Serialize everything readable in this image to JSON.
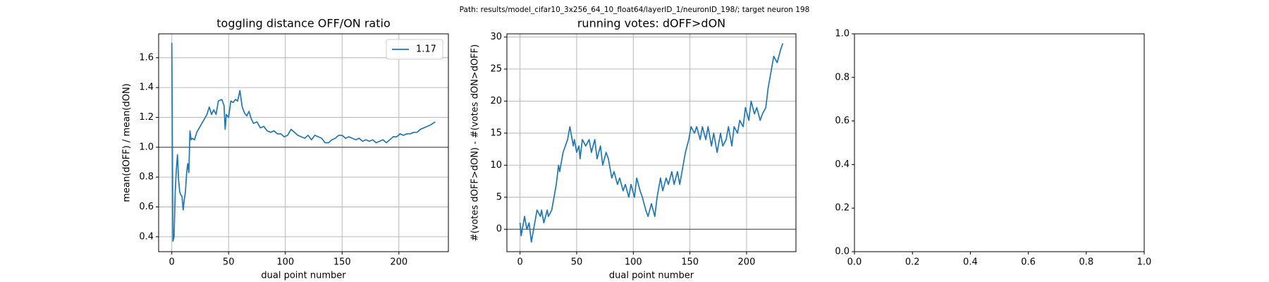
{
  "title": "Path: results/model_cifar10_3x256_64_10_float64/layerID_1/neuronID_198/; target neuron 198",
  "chart_data": [
    {
      "type": "line",
      "title": "toggling distance OFF/ON ratio",
      "x_label": "dual point number",
      "y_label": "mean(dOFF) / mean(dON)",
      "x": [
        0,
        1,
        2,
        3,
        4,
        5,
        6,
        7,
        8,
        9,
        10,
        11,
        12,
        13,
        14,
        15,
        16,
        17,
        18,
        20,
        22,
        25,
        28,
        31,
        33,
        35,
        37,
        39,
        41,
        44,
        46,
        47,
        48,
        50,
        52,
        54,
        56,
        58,
        60,
        62,
        64,
        66,
        68,
        70,
        72,
        75,
        78,
        81,
        84,
        87,
        90,
        93,
        96,
        99,
        102,
        105,
        108,
        111,
        114,
        117,
        120,
        123,
        126,
        129,
        132,
        135,
        138,
        141,
        144,
        147,
        150,
        153,
        156,
        159,
        162,
        165,
        168,
        171,
        174,
        177,
        180,
        183,
        186,
        189,
        192,
        195,
        198,
        201,
        204,
        207,
        210,
        213,
        216,
        219,
        222,
        225,
        228,
        232
      ],
      "series": [
        {
          "name": "1.17",
          "color": "#1f77b4",
          "values": [
            1.7,
            0.37,
            0.4,
            0.7,
            0.85,
            0.95,
            0.78,
            0.7,
            0.68,
            0.67,
            0.58,
            0.65,
            0.7,
            0.82,
            0.89,
            0.83,
            1.11,
            1.05,
            1.06,
            1.05,
            1.1,
            1.14,
            1.18,
            1.22,
            1.27,
            1.22,
            1.25,
            1.22,
            1.31,
            1.32,
            1.28,
            1.12,
            1.22,
            1.2,
            1.31,
            1.3,
            1.32,
            1.31,
            1.38,
            1.27,
            1.23,
            1.21,
            1.24,
            1.19,
            1.16,
            1.17,
            1.13,
            1.14,
            1.11,
            1.1,
            1.11,
            1.09,
            1.09,
            1.07,
            1.08,
            1.12,
            1.1,
            1.08,
            1.07,
            1.06,
            1.08,
            1.05,
            1.08,
            1.07,
            1.06,
            1.03,
            1.03,
            1.05,
            1.06,
            1.08,
            1.08,
            1.06,
            1.07,
            1.06,
            1.05,
            1.06,
            1.04,
            1.05,
            1.04,
            1.05,
            1.03,
            1.04,
            1.05,
            1.03,
            1.05,
            1.07,
            1.07,
            1.09,
            1.08,
            1.09,
            1.09,
            1.1,
            1.1,
            1.12,
            1.13,
            1.14,
            1.15,
            1.17
          ]
        }
      ],
      "hline": 1,
      "xlim": [
        -11.6,
        243.6
      ],
      "ylim": [
        0.3,
        1.76
      ],
      "xticks": [
        0,
        50,
        100,
        150,
        200
      ],
      "yticks": [
        0.4,
        0.6,
        0.8,
        {
          "value": 1,
          "label": "1.0"
        },
        1.2,
        1.4,
        1.6
      ],
      "grid": true,
      "legend": "upper right"
    },
    {
      "type": "line",
      "title": "running votes: dOFF>dON",
      "x_label": "dual point number",
      "y_label": "#(votes dOFF>dON) - #(votes dON>dOFF)",
      "x": [
        0,
        1,
        4,
        6,
        8,
        10,
        13,
        15,
        18,
        19,
        21,
        24,
        25,
        28,
        32,
        34,
        35,
        38,
        42,
        44,
        47,
        48,
        50,
        52,
        53,
        55,
        58,
        61,
        63,
        66,
        68,
        71,
        73,
        76,
        78,
        81,
        83,
        86,
        88,
        91,
        93,
        96,
        98,
        101,
        103,
        106,
        108,
        111,
        113,
        116,
        119,
        121,
        124,
        126,
        129,
        131,
        134,
        136,
        139,
        141,
        144,
        146,
        149,
        151,
        154,
        156,
        159,
        161,
        164,
        166,
        169,
        171,
        174,
        177,
        179,
        182,
        184,
        187,
        189,
        192,
        194,
        197,
        199,
        202,
        204,
        207,
        209,
        212,
        214,
        217,
        219,
        222,
        224,
        227,
        230,
        232
      ],
      "series": [
        {
          "name": "votes",
          "color": "#1f77b4",
          "values": [
            1,
            -1,
            2,
            0,
            1,
            -2,
            1,
            3,
            2,
            3,
            1,
            3,
            2,
            3,
            7,
            10,
            9,
            12,
            14,
            16,
            13,
            14,
            12,
            13,
            11,
            14,
            13,
            14,
            12,
            14,
            11,
            13,
            10,
            12,
            11,
            8,
            9,
            7,
            8,
            6,
            7,
            5,
            7,
            5,
            8,
            6,
            5,
            3,
            2,
            4,
            2,
            5,
            8,
            6,
            8,
            7,
            9,
            7,
            9,
            7,
            10,
            12,
            14,
            16,
            15,
            16,
            14,
            16,
            14,
            16,
            13,
            15,
            12,
            15,
            13,
            14,
            16,
            13,
            16,
            15,
            17,
            16,
            19,
            17,
            20,
            18,
            19,
            17,
            18,
            19,
            22,
            25,
            27,
            26,
            28,
            29
          ]
        }
      ],
      "hline": 0,
      "xlim": [
        -11.6,
        243.6
      ],
      "ylim": [
        -3.5,
        30.5
      ],
      "xticks": [
        0,
        50,
        100,
        150,
        200
      ],
      "yticks": [
        0,
        5,
        10,
        15,
        20,
        25,
        30
      ],
      "grid": true
    },
    {
      "type": "line",
      "xlim": [
        0,
        1
      ],
      "ylim": [
        0,
        1
      ],
      "xticks": [
        {
          "value": 0,
          "label": "0.0"
        },
        0.2,
        0.4,
        0.6,
        0.8,
        {
          "value": 1,
          "label": "1.0"
        }
      ],
      "yticks": [
        {
          "value": 0,
          "label": "0.0"
        },
        0.2,
        0.4,
        0.6,
        0.8,
        {
          "value": 1,
          "label": "1.0"
        }
      ],
      "grid": false
    }
  ]
}
